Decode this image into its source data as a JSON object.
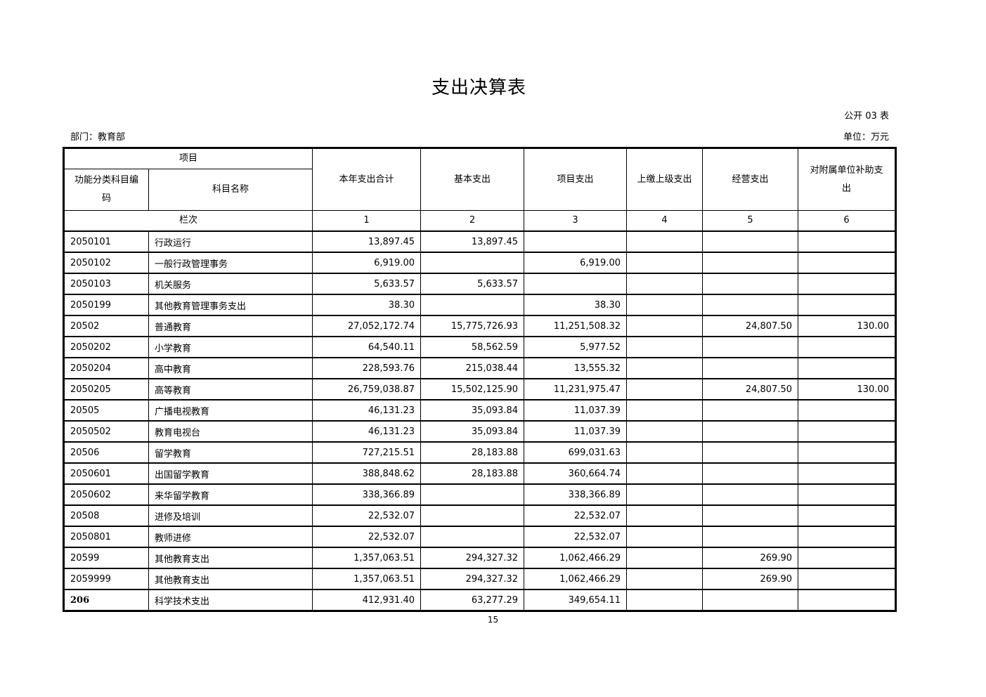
{
  "title": "支出决算表",
  "form_no": "公开 03 表",
  "department": "部门：教育部",
  "unit": "单位：万元",
  "header": {
    "item": "项目",
    "code": "功能分类科目编码",
    "name": "科目名称",
    "total": "本年支出合计",
    "basic": "基本支出",
    "project": "项目支出",
    "upper": "上缴上级支出",
    "business": "经营支出",
    "subsidy": "对附属单位补助支出",
    "row_index": "栏次",
    "col_numbers": [
      "1",
      "2",
      "3",
      "4",
      "5",
      "6"
    ]
  },
  "rows": [
    {
      "code": "2050101",
      "name": "行政运行",
      "total": "13,897.45",
      "basic": "13,897.45",
      "project": "",
      "upper": "",
      "business": "",
      "subsidy": ""
    },
    {
      "code": "2050102",
      "name": "一般行政管理事务",
      "total": "6,919.00",
      "basic": "",
      "project": "6,919.00",
      "upper": "",
      "business": "",
      "subsidy": ""
    },
    {
      "code": "2050103",
      "name": "机关服务",
      "total": "5,633.57",
      "basic": "5,633.57",
      "project": "",
      "upper": "",
      "business": "",
      "subsidy": ""
    },
    {
      "code": "2050199",
      "name": "其他教育管理事务支出",
      "total": "38.30",
      "basic": "",
      "project": "38.30",
      "upper": "",
      "business": "",
      "subsidy": ""
    },
    {
      "code": "20502",
      "name": "普通教育",
      "total": "27,052,172.74",
      "basic": "15,775,726.93",
      "project": "11,251,508.32",
      "upper": "",
      "business": "24,807.50",
      "subsidy": "130.00"
    },
    {
      "code": "2050202",
      "name": "小学教育",
      "total": "64,540.11",
      "basic": "58,562.59",
      "project": "5,977.52",
      "upper": "",
      "business": "",
      "subsidy": ""
    },
    {
      "code": "2050204",
      "name": "高中教育",
      "total": "228,593.76",
      "basic": "215,038.44",
      "project": "13,555.32",
      "upper": "",
      "business": "",
      "subsidy": ""
    },
    {
      "code": "2050205",
      "name": "高等教育",
      "total": "26,759,038.87",
      "basic": "15,502,125.90",
      "project": "11,231,975.47",
      "upper": "",
      "business": "24,807.50",
      "subsidy": "130.00"
    },
    {
      "code": "20505",
      "name": "广播电视教育",
      "total": "46,131.23",
      "basic": "35,093.84",
      "project": "11,037.39",
      "upper": "",
      "business": "",
      "subsidy": ""
    },
    {
      "code": "2050502",
      "name": "教育电视台",
      "total": "46,131.23",
      "basic": "35,093.84",
      "project": "11,037.39",
      "upper": "",
      "business": "",
      "subsidy": ""
    },
    {
      "code": "20506",
      "name": "留学教育",
      "total": "727,215.51",
      "basic": "28,183.88",
      "project": "699,031.63",
      "upper": "",
      "business": "",
      "subsidy": ""
    },
    {
      "code": "2050601",
      "name": "出国留学教育",
      "total": "388,848.62",
      "basic": "28,183.88",
      "project": "360,664.74",
      "upper": "",
      "business": "",
      "subsidy": ""
    },
    {
      "code": "2050602",
      "name": "来华留学教育",
      "total": "338,366.89",
      "basic": "",
      "project": "338,366.89",
      "upper": "",
      "business": "",
      "subsidy": ""
    },
    {
      "code": "20508",
      "name": "进修及培训",
      "total": "22,532.07",
      "basic": "",
      "project": "22,532.07",
      "upper": "",
      "business": "",
      "subsidy": ""
    },
    {
      "code": "2050801",
      "name": "教师进修",
      "total": "22,532.07",
      "basic": "",
      "project": "22,532.07",
      "upper": "",
      "business": "",
      "subsidy": ""
    },
    {
      "code": "20599",
      "name": "其他教育支出",
      "total": "1,357,063.51",
      "basic": "294,327.32",
      "project": "1,062,466.29",
      "upper": "",
      "business": "269.90",
      "subsidy": ""
    },
    {
      "code": "2059999",
      "name": "其他教育支出",
      "total": "1,357,063.51",
      "basic": "294,327.32",
      "project": "1,062,466.29",
      "upper": "",
      "business": "269.90",
      "subsidy": ""
    },
    {
      "code": "206",
      "name": "科学技术支出",
      "total": "412,931.40",
      "basic": "63,277.29",
      "project": "349,654.11",
      "upper": "",
      "business": "",
      "subsidy": "",
      "bold_code": true
    }
  ],
  "page_number": "15"
}
